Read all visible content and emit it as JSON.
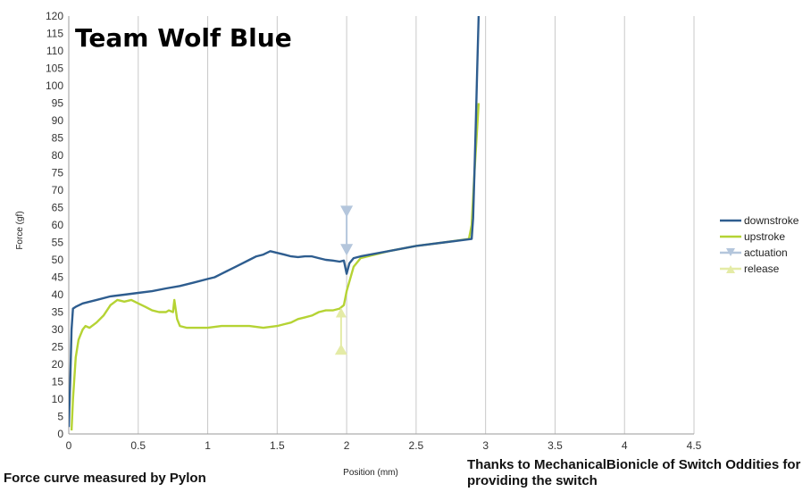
{
  "chart_data": {
    "type": "line",
    "title": "Team Wolf Blue",
    "xlabel": "Position (mm)",
    "ylabel": "Force (gf)",
    "xlim": [
      0,
      4.5
    ],
    "ylim": [
      0,
      120
    ],
    "x_ticks": [
      "0",
      "0.5",
      "1",
      "1.5",
      "2",
      "2.5",
      "3",
      "3.5",
      "4",
      "4.5"
    ],
    "x_tick_values": [
      0,
      0.5,
      1,
      1.5,
      2,
      2.5,
      3,
      3.5,
      4,
      4.5
    ],
    "y_ticks": [
      "0",
      "5",
      "10",
      "15",
      "20",
      "25",
      "30",
      "35",
      "40",
      "45",
      "50",
      "55",
      "60",
      "65",
      "70",
      "75",
      "80",
      "85",
      "90",
      "95",
      "100",
      "105",
      "110",
      "115",
      "120"
    ],
    "y_tick_values": [
      0,
      5,
      10,
      15,
      20,
      25,
      30,
      35,
      40,
      45,
      50,
      55,
      60,
      65,
      70,
      75,
      80,
      85,
      90,
      95,
      100,
      105,
      110,
      115,
      120
    ],
    "grid": "vertical",
    "legend_position": "right",
    "series": [
      {
        "name": "downstroke",
        "color": "#2e5d8f",
        "x": [
          0.0,
          0.01,
          0.02,
          0.03,
          0.05,
          0.1,
          0.2,
          0.3,
          0.4,
          0.5,
          0.6,
          0.7,
          0.8,
          0.9,
          1.0,
          1.05,
          1.1,
          1.15,
          1.2,
          1.25,
          1.3,
          1.35,
          1.4,
          1.45,
          1.5,
          1.55,
          1.6,
          1.65,
          1.7,
          1.75,
          1.8,
          1.85,
          1.9,
          1.95,
          1.98,
          2.0,
          2.02,
          2.05,
          2.1,
          2.3,
          2.5,
          2.7,
          2.9,
          2.91,
          2.92,
          2.93,
          2.94,
          2.95
        ],
        "y": [
          2,
          15,
          30,
          36,
          36.5,
          37.5,
          38.5,
          39.5,
          40,
          40.5,
          41,
          41.8,
          42.5,
          43.5,
          44.5,
          45,
          46,
          47,
          48,
          49,
          50,
          51,
          51.5,
          52.5,
          52,
          51.5,
          51,
          50.8,
          51,
          51,
          50.5,
          50,
          49.8,
          49.5,
          49.8,
          46,
          49,
          50.5,
          51,
          52.5,
          54,
          55,
          56,
          62,
          75,
          90,
          105,
          120
        ]
      },
      {
        "name": "upstroke",
        "color": "#b5d334",
        "x": [
          0.02,
          0.03,
          0.05,
          0.07,
          0.08,
          0.1,
          0.12,
          0.15,
          0.2,
          0.25,
          0.3,
          0.35,
          0.4,
          0.45,
          0.5,
          0.55,
          0.6,
          0.65,
          0.7,
          0.72,
          0.75,
          0.76,
          0.78,
          0.8,
          0.85,
          0.9,
          1.0,
          1.1,
          1.2,
          1.3,
          1.4,
          1.5,
          1.55,
          1.6,
          1.65,
          1.7,
          1.75,
          1.8,
          1.85,
          1.9,
          1.95,
          1.98,
          2.0,
          2.05,
          2.1,
          2.3,
          2.5,
          2.7,
          2.88,
          2.9,
          2.92,
          2.95
        ],
        "y": [
          1,
          10,
          22,
          27,
          28,
          30,
          31,
          30.5,
          32,
          34,
          37,
          38.5,
          38,
          38.5,
          37.5,
          36.5,
          35.5,
          35,
          35,
          35.5,
          35,
          38.5,
          33,
          31,
          30.5,
          30.5,
          30.5,
          31,
          31,
          31,
          30.5,
          31,
          31.5,
          32,
          33,
          33.5,
          34,
          35,
          35.5,
          35.5,
          36,
          37,
          41,
          48,
          50.5,
          52.5,
          54,
          55,
          56,
          60,
          75,
          95
        ]
      },
      {
        "name": "actuation",
        "color": "#b4c6dc",
        "x": [
          2.0,
          2.0
        ],
        "y": [
          64,
          53
        ]
      },
      {
        "name": "release",
        "color": "#e4eba6",
        "x": [
          1.96,
          1.96
        ],
        "y": [
          23,
          35
        ]
      }
    ]
  },
  "annotations": {
    "left": "Force curve measured by Pylon",
    "right": "Thanks to MechanicalBionicle of Switch Oddities for providing the switch"
  }
}
